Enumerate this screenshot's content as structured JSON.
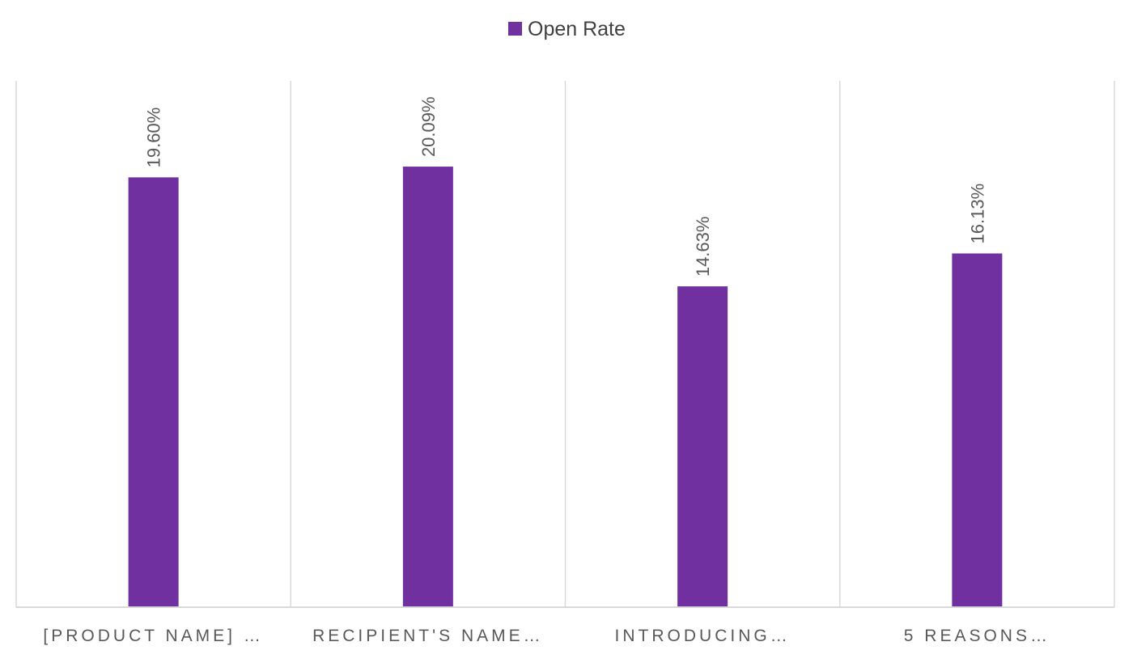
{
  "chart_data": {
    "type": "bar",
    "categories": [
      "[PRODUCT NAME] …",
      "RECIPIENT'S NAME…",
      "INTRODUCING…",
      "5 REASONS…"
    ],
    "series": [
      {
        "name": "Open Rate",
        "values": [
          19.6,
          20.09,
          14.63,
          16.13
        ],
        "data_labels": [
          "19.60%",
          "20.09%",
          "14.63%",
          "16.13%"
        ],
        "color": "#7030A0"
      }
    ],
    "title": "",
    "xlabel": "",
    "ylabel": "",
    "ylim": [
      0,
      24
    ],
    "value_unit": "%",
    "grid": "vertical category separators",
    "legend": "top-center",
    "y_axis_visible": false,
    "colors": {
      "bar": "#7030A0",
      "separator": "#d9d9d9",
      "axis": "#d9d9d9",
      "label_text": "#595959",
      "legend_text": "#404040"
    }
  }
}
